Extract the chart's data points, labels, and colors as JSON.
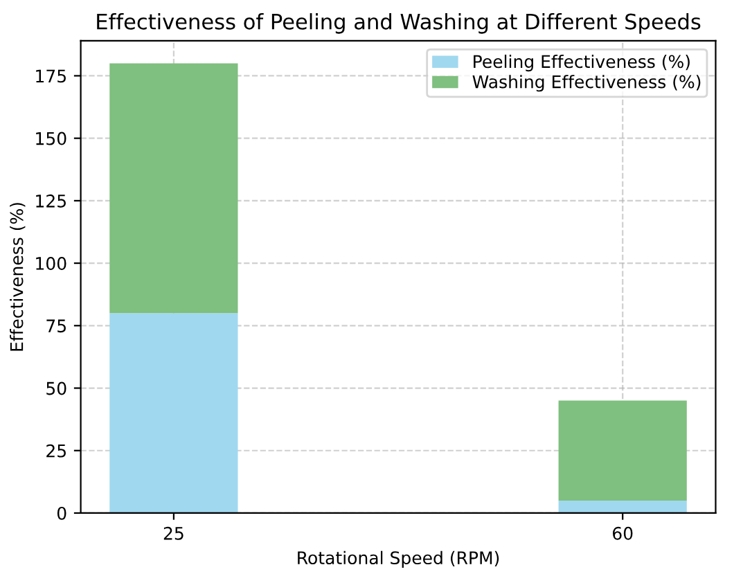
{
  "chart_data": {
    "type": "bar",
    "title": "Effectiveness of Peeling and Washing at Different Speeds",
    "xlabel": "Rotational Speed (RPM)",
    "ylabel": "Effectiveness (%)",
    "x": [
      25,
      60
    ],
    "stacked": true,
    "series": [
      {
        "name": "Peeling Effectiveness (%)",
        "color": "#a0d8ef",
        "values": [
          80,
          5
        ]
      },
      {
        "name": "Washing Effectiveness (%)",
        "color": "#7fbf7f",
        "values": [
          100,
          40
        ]
      }
    ],
    "xlim": [
      17.75,
      67.25
    ],
    "xticks": [
      25,
      60
    ],
    "ylim": [
      0,
      189
    ],
    "yticks": [
      0,
      25,
      50,
      75,
      100,
      125,
      150,
      175
    ],
    "grid": true,
    "legend": "top right"
  }
}
